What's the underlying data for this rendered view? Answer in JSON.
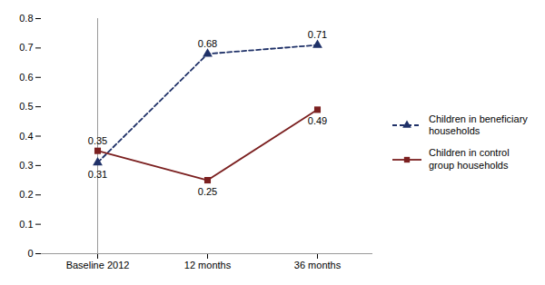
{
  "chart_data": {
    "type": "line",
    "categories": [
      "Baseline 2012",
      "12 months",
      "36 months"
    ],
    "series": [
      {
        "name": "Children in beneficiary\nhouseholds",
        "color": "#1f3168",
        "values": [
          0.31,
          0.68,
          0.71
        ],
        "marker": "triangle",
        "line_style": "dashed"
      },
      {
        "name": "Children in control\ngroup households",
        "color": "#7b2020",
        "values": [
          0.35,
          0.25,
          0.49
        ],
        "marker": "square",
        "line_style": "solid"
      }
    ],
    "ylim": [
      0,
      0.8
    ],
    "yticks": [
      0,
      0.1,
      0.2,
      0.3,
      0.4,
      0.5,
      0.6,
      0.7,
      0.8
    ],
    "grid": false,
    "legend": "right",
    "data_labels": true
  }
}
